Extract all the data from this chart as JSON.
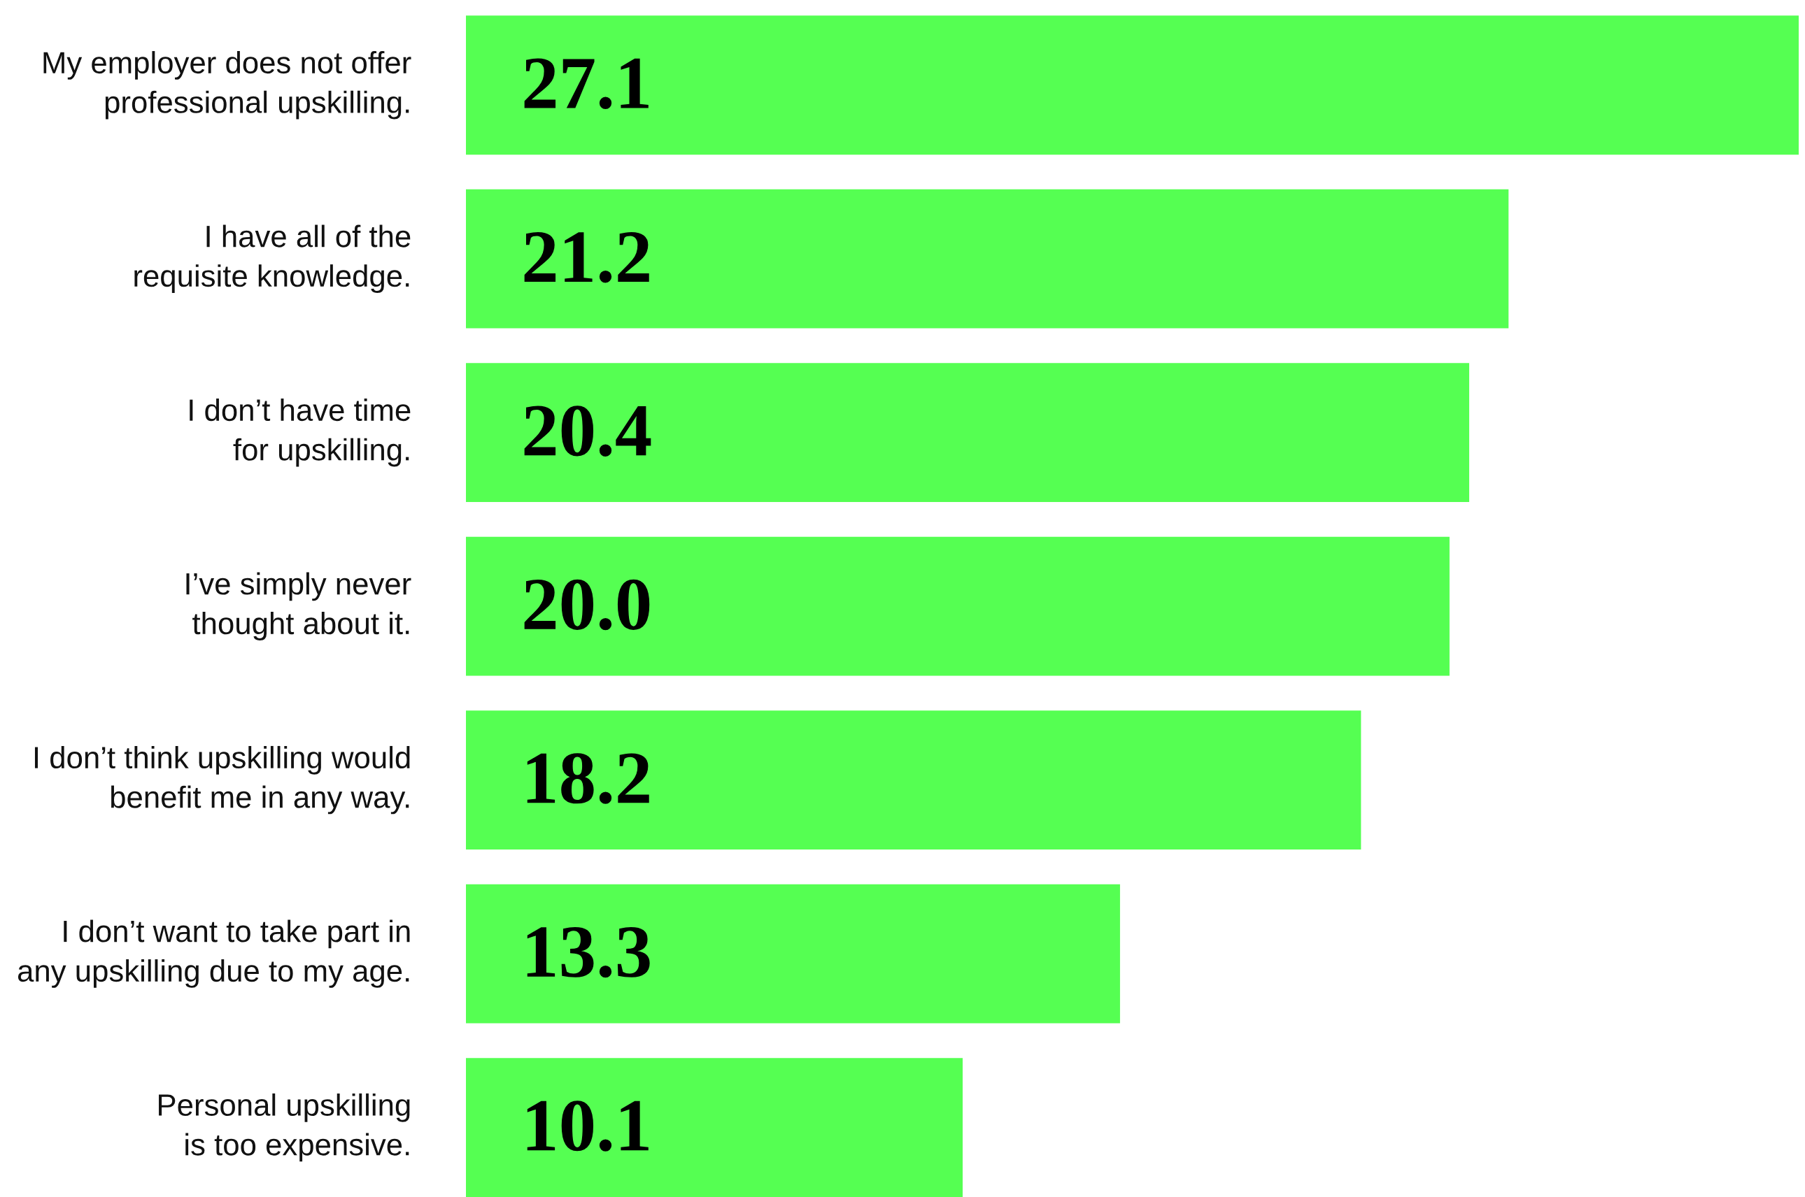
{
  "chart_data": {
    "type": "bar",
    "orientation": "horizontal",
    "categories": [
      "My employer does not offer\nprofessional upskilling.",
      "I have all of the\nrequisite knowledge.",
      "I don’t have time\nfor upskilling.",
      "I’ve simply never\nthought about it.",
      "I don’t think upskilling would\nbenefit me in any way.",
      "I don’t want to take part in\nany upskilling due to my age.",
      "Personal upskilling\nis too expensive."
    ],
    "values": [
      27.1,
      21.2,
      20.4,
      20.0,
      18.2,
      13.3,
      10.1
    ],
    "value_labels": [
      "27.1",
      "21.2",
      "20.4",
      "20.0",
      "18.2",
      "13.3",
      "10.1"
    ],
    "color": "#55ff52",
    "tick_labels": "y"
  }
}
